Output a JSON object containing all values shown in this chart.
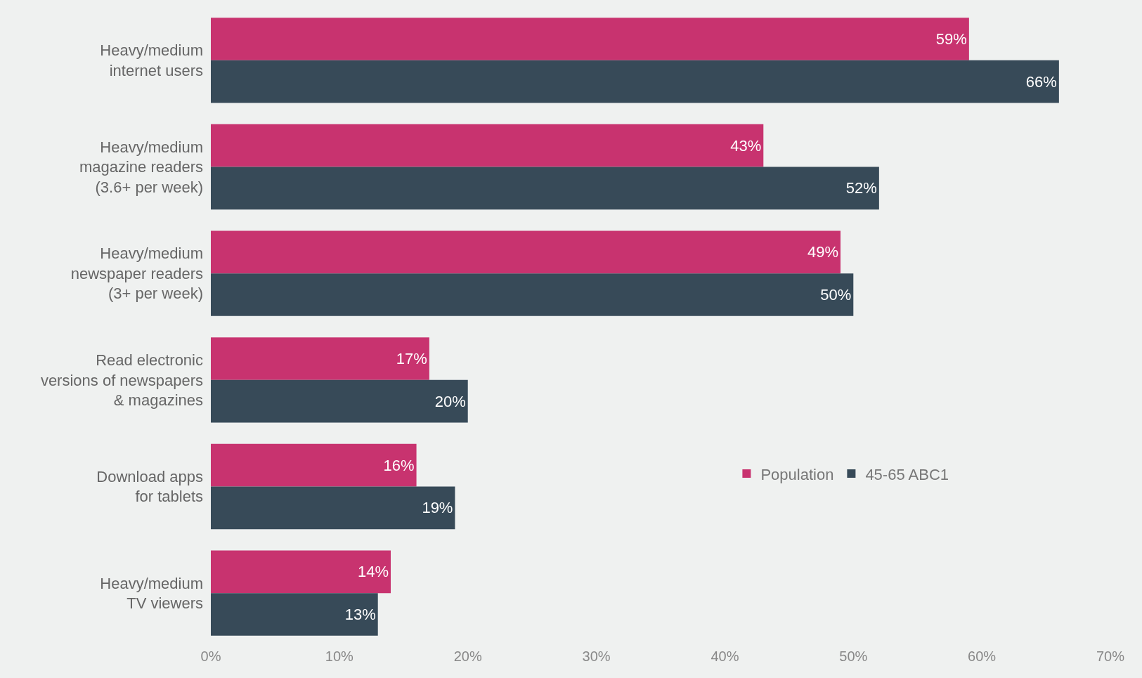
{
  "chart_data": {
    "type": "bar",
    "orientation": "horizontal",
    "categories": [
      "Heavy/medium\ninternet users",
      "Heavy/medium\nmagazine readers\n(3.6+ per week)",
      "Heavy/medium\nnewspaper readers\n(3+ per week)",
      "Read electronic\nversions of newspapers\n& magazines",
      "Download apps\nfor tablets",
      "Heavy/medium\nTV viewers"
    ],
    "series": [
      {
        "name": "Population",
        "color": "#c8336f",
        "values": [
          59,
          43,
          49,
          17,
          16,
          14
        ],
        "value_labels": [
          "59%",
          "43%",
          "49%",
          "17%",
          "16%",
          "14%"
        ]
      },
      {
        "name": "45-65 ABC1",
        "color": "#374a58",
        "values": [
          66,
          52,
          50,
          20,
          19,
          13
        ],
        "value_labels": [
          "66%",
          "52%",
          "50%",
          "20%",
          "19%",
          "13%"
        ]
      }
    ],
    "xlim": [
      0,
      70
    ],
    "xticks": [
      {
        "value": 0,
        "label": "0%"
      },
      {
        "value": 10,
        "label": "10%"
      },
      {
        "value": 20,
        "label": "20%"
      },
      {
        "value": 30,
        "label": "30%"
      },
      {
        "value": 40,
        "label": "40%"
      },
      {
        "value": 50,
        "label": "50%"
      },
      {
        "value": 60,
        "label": "60%"
      },
      {
        "value": 70,
        "label": "70%"
      }
    ],
    "grid": false,
    "legend": "right"
  }
}
